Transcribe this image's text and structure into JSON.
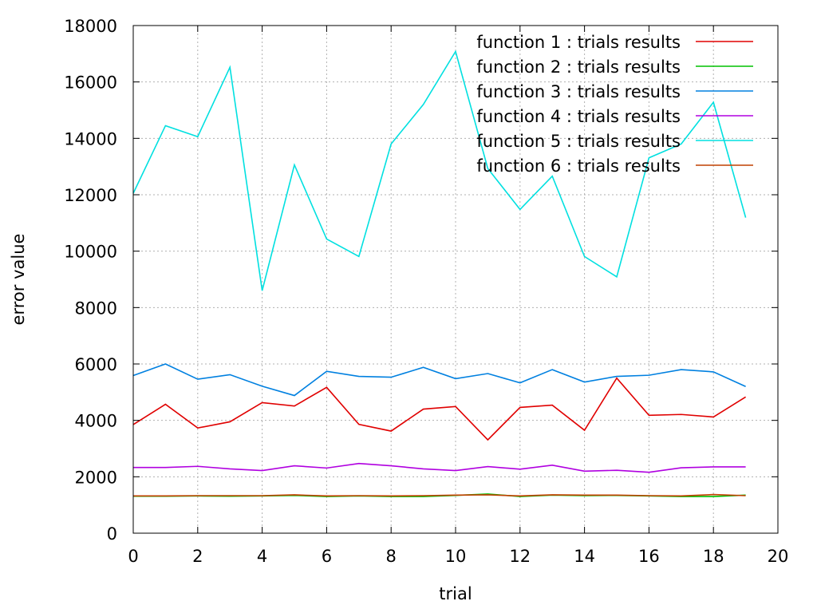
{
  "chart_data": {
    "type": "line",
    "title": "",
    "xlabel": "trial",
    "ylabel": "error value",
    "xlim": [
      0,
      20
    ],
    "ylim": [
      0,
      18000
    ],
    "xticks": [
      "0",
      "2",
      "4",
      "6",
      "8",
      "10",
      "12",
      "14",
      "16",
      "18",
      "20"
    ],
    "yticks": [
      "0",
      "2000",
      "4000",
      "6000",
      "8000",
      "10000",
      "12000",
      "14000",
      "16000",
      "18000"
    ],
    "grid": true,
    "legend_position": "top-right",
    "x": [
      0,
      1,
      2,
      3,
      4,
      5,
      6,
      7,
      8,
      9,
      10,
      11,
      12,
      13,
      14,
      15,
      16,
      17,
      18,
      19
    ],
    "series": [
      {
        "name": "function 1 : trials results",
        "color": "#e00000",
        "values": [
          3850,
          4570,
          3730,
          3950,
          4630,
          4510,
          5170,
          3860,
          3620,
          4400,
          4490,
          3310,
          4460,
          4540,
          3650,
          5500,
          4180,
          4210,
          4120,
          4830
        ]
      },
      {
        "name": "function 2 : trials results",
        "color": "#00c000",
        "values": [
          1310,
          1310,
          1320,
          1310,
          1320,
          1340,
          1300,
          1320,
          1300,
          1300,
          1340,
          1390,
          1300,
          1350,
          1330,
          1340,
          1320,
          1300,
          1300,
          1350
        ]
      },
      {
        "name": "function 3 : trials results",
        "color": "#0080e0",
        "values": [
          5590,
          6000,
          5460,
          5620,
          5210,
          4880,
          5740,
          5560,
          5530,
          5880,
          5480,
          5660,
          5330,
          5800,
          5360,
          5560,
          5600,
          5800,
          5720,
          5200
        ]
      },
      {
        "name": "function 4 : trials results",
        "color": "#b000e0",
        "values": [
          2330,
          2330,
          2370,
          2280,
          2220,
          2390,
          2310,
          2470,
          2390,
          2280,
          2220,
          2360,
          2270,
          2410,
          2200,
          2230,
          2160,
          2320,
          2350,
          2350
        ]
      },
      {
        "name": "function 5 : trials results",
        "color": "#00e0e0",
        "values": [
          12050,
          14450,
          14060,
          16520,
          8600,
          13060,
          10430,
          9810,
          13800,
          15200,
          17080,
          12930,
          11480,
          12660,
          9810,
          9090,
          13310,
          13800,
          15280,
          11190
        ]
      },
      {
        "name": "function 6 : trials results",
        "color": "#c04000",
        "values": [
          1320,
          1320,
          1330,
          1330,
          1330,
          1360,
          1320,
          1330,
          1320,
          1330,
          1350,
          1360,
          1320,
          1360,
          1350,
          1350,
          1330,
          1320,
          1370,
          1330
        ]
      }
    ]
  }
}
